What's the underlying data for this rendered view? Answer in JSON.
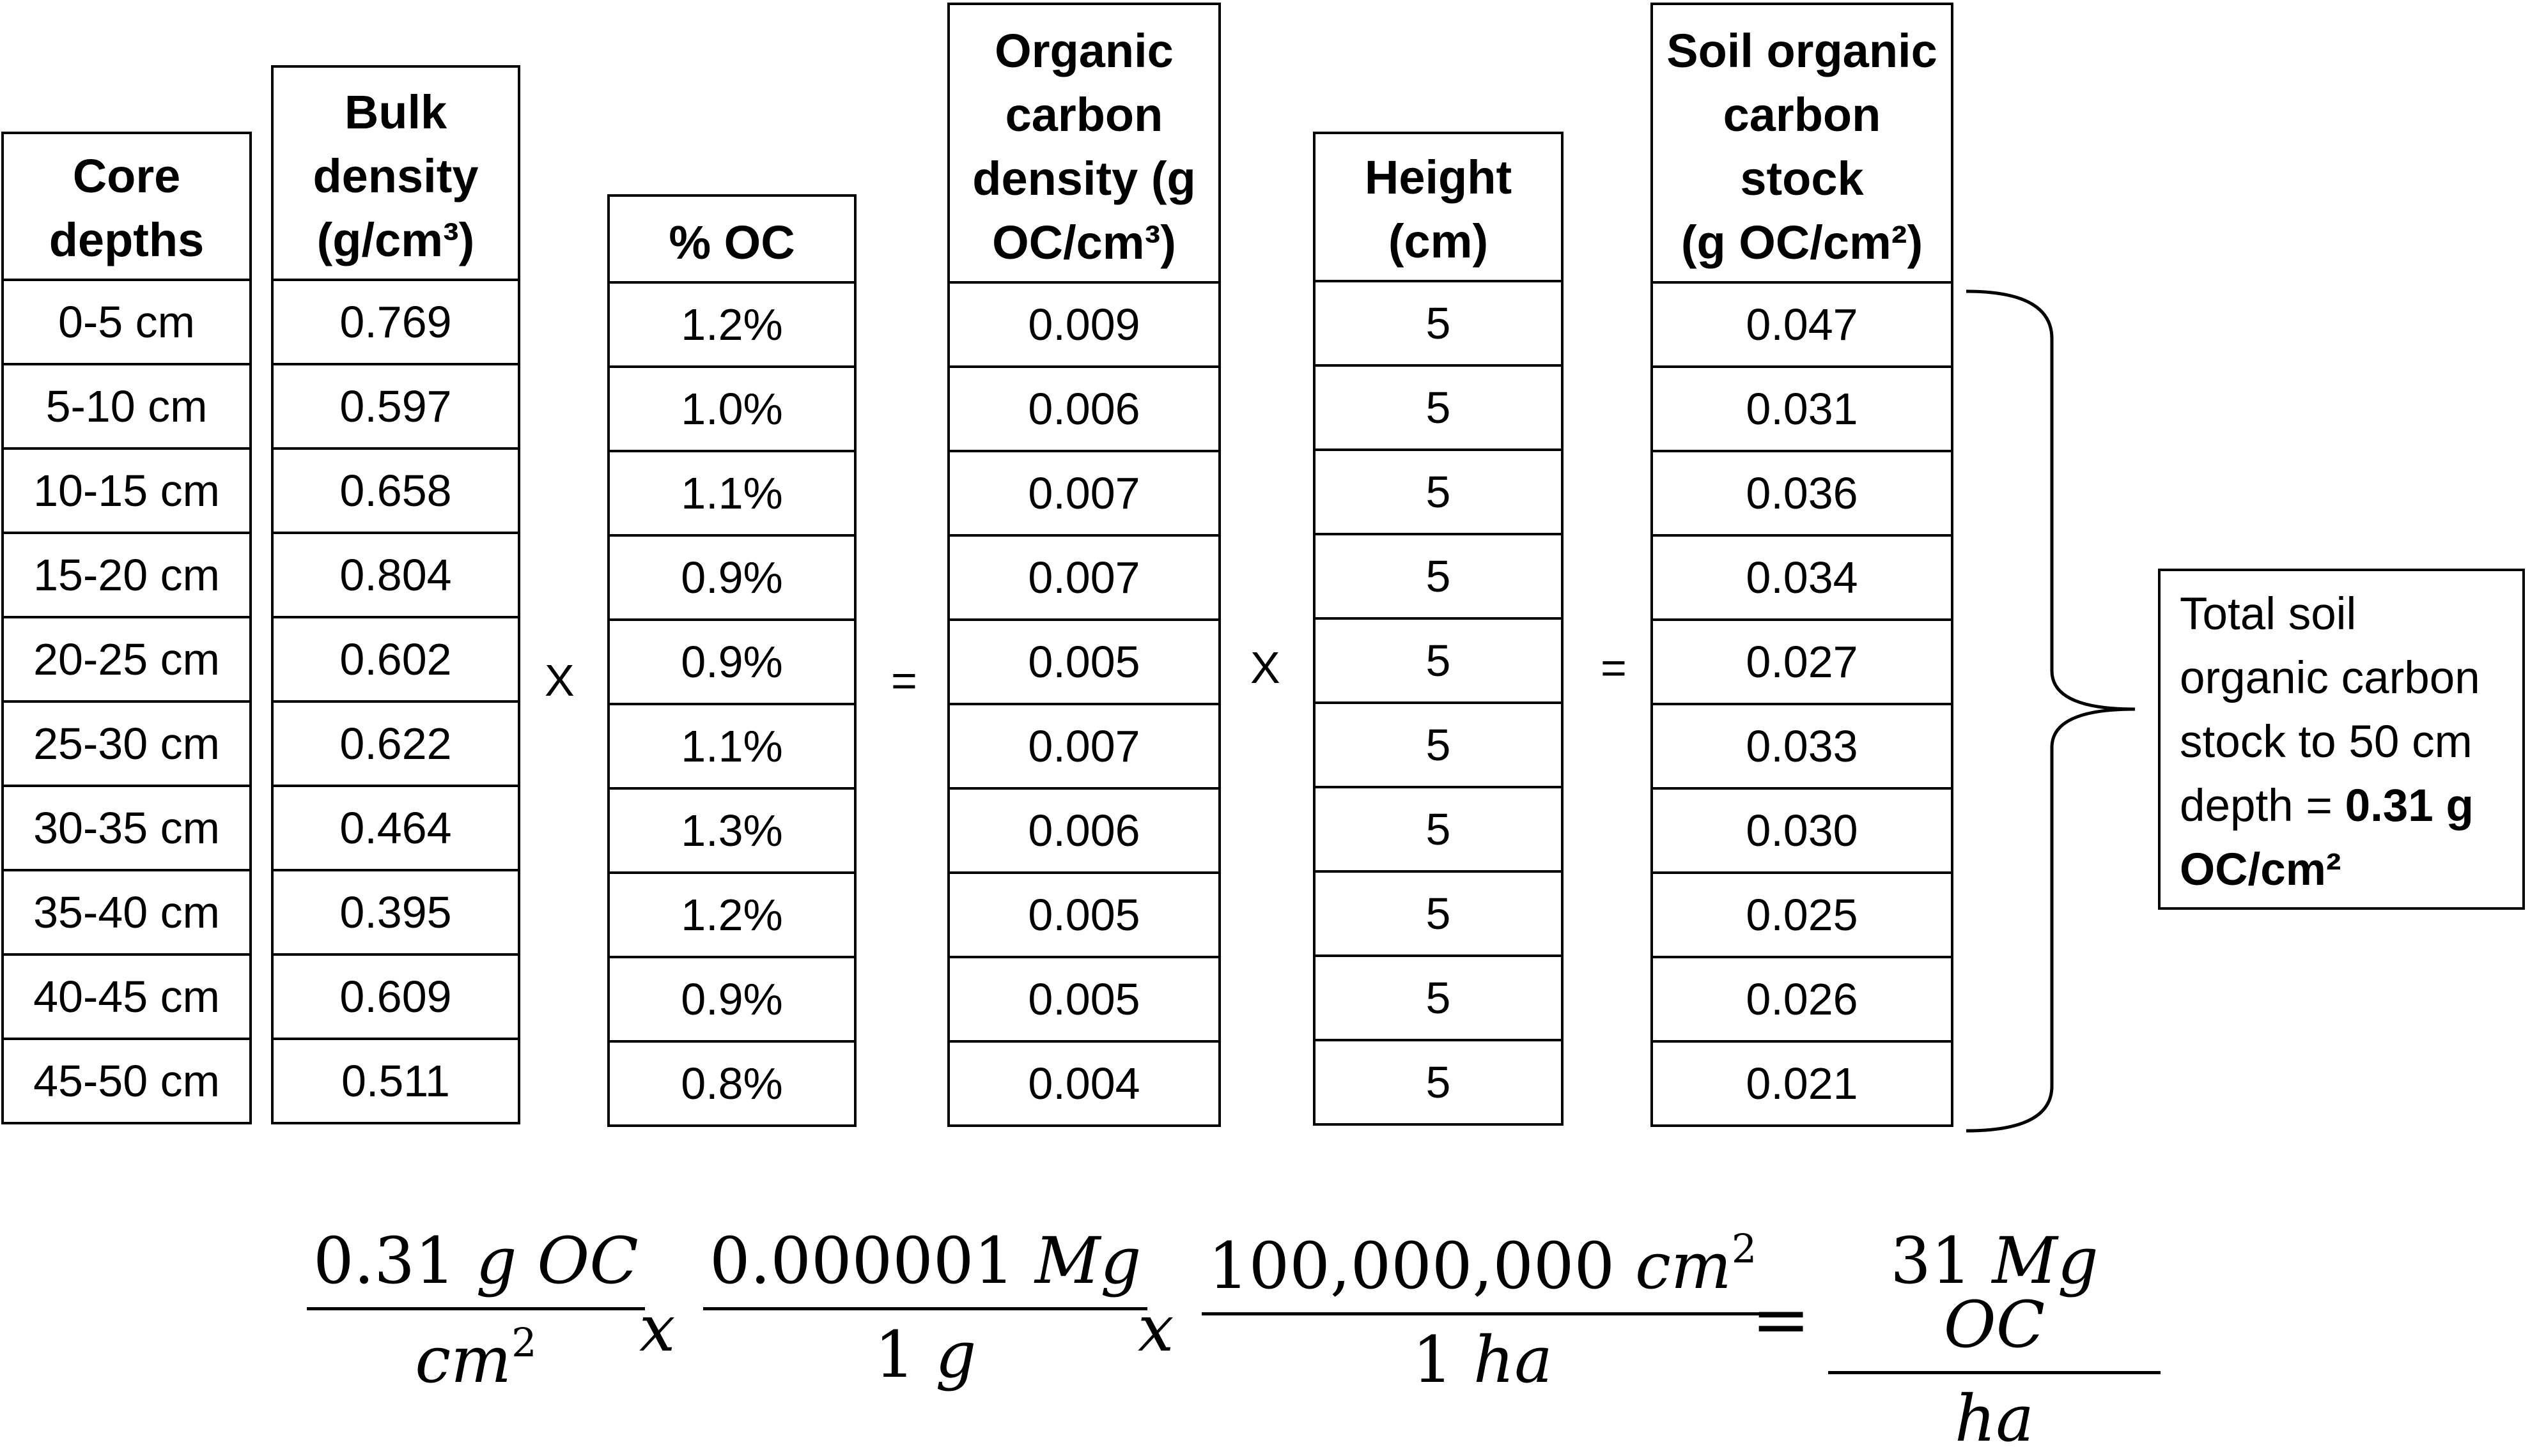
{
  "columns": [
    {
      "header": "Core\ndepths",
      "values": [
        "0-5 cm",
        "5-10 cm",
        "10-15 cm",
        "15-20 cm",
        "20-25 cm",
        "25-30 cm",
        "30-35 cm",
        "35-40 cm",
        "40-45 cm",
        "45-50 cm"
      ]
    },
    {
      "header": "Bulk\ndensity\n(g/cm³)",
      "values": [
        "0.769",
        "0.597",
        "0.658",
        "0.804",
        "0.602",
        "0.622",
        "0.464",
        "0.395",
        "0.609",
        "0.511"
      ]
    },
    {
      "header": "% OC",
      "values": [
        "1.2%",
        "1.0%",
        "1.1%",
        "0.9%",
        "0.9%",
        "1.1%",
        "1.3%",
        "1.2%",
        "0.9%",
        "0.8%"
      ]
    },
    {
      "header": "Organic\ncarbon\ndensity (g\nOC/cm³)",
      "values": [
        "0.009",
        "0.006",
        "0.007",
        "0.007",
        "0.005",
        "0.007",
        "0.006",
        "0.005",
        "0.005",
        "0.004"
      ]
    },
    {
      "header": "Height\n(cm)",
      "values": [
        "5",
        "5",
        "5",
        "5",
        "5",
        "5",
        "5",
        "5",
        "5",
        "5"
      ]
    },
    {
      "header": "Soil organic\ncarbon\nstock\n(g OC/cm²)",
      "values": [
        "0.047",
        "0.031",
        "0.036",
        "0.034",
        "0.027",
        "0.033",
        "0.030",
        "0.025",
        "0.026",
        "0.021"
      ]
    }
  ],
  "operators": [
    "X",
    "=",
    "X",
    "="
  ],
  "total": {
    "text": "Total soil organic carbon stock to 50 cm depth = ",
    "value": "0.31 g OC/cm²"
  },
  "equation": {
    "frac1": {
      "num_value": "0.31",
      "num_unit": "g OC",
      "den_unit": "cm",
      "den_exp": "2"
    },
    "times1": "x",
    "frac2": {
      "num_value": "0.000001",
      "num_unit": "Mg",
      "den_value": "1",
      "den_unit": "g"
    },
    "times2": "x",
    "frac3": {
      "num_value": "100,000,000",
      "num_unit": "cm",
      "num_exp": "2",
      "den_value": "1",
      "den_unit": "ha"
    },
    "equals": "=",
    "frac4": {
      "num_value": "31",
      "num_unit": "Mg OC",
      "den_unit": "ha"
    }
  }
}
